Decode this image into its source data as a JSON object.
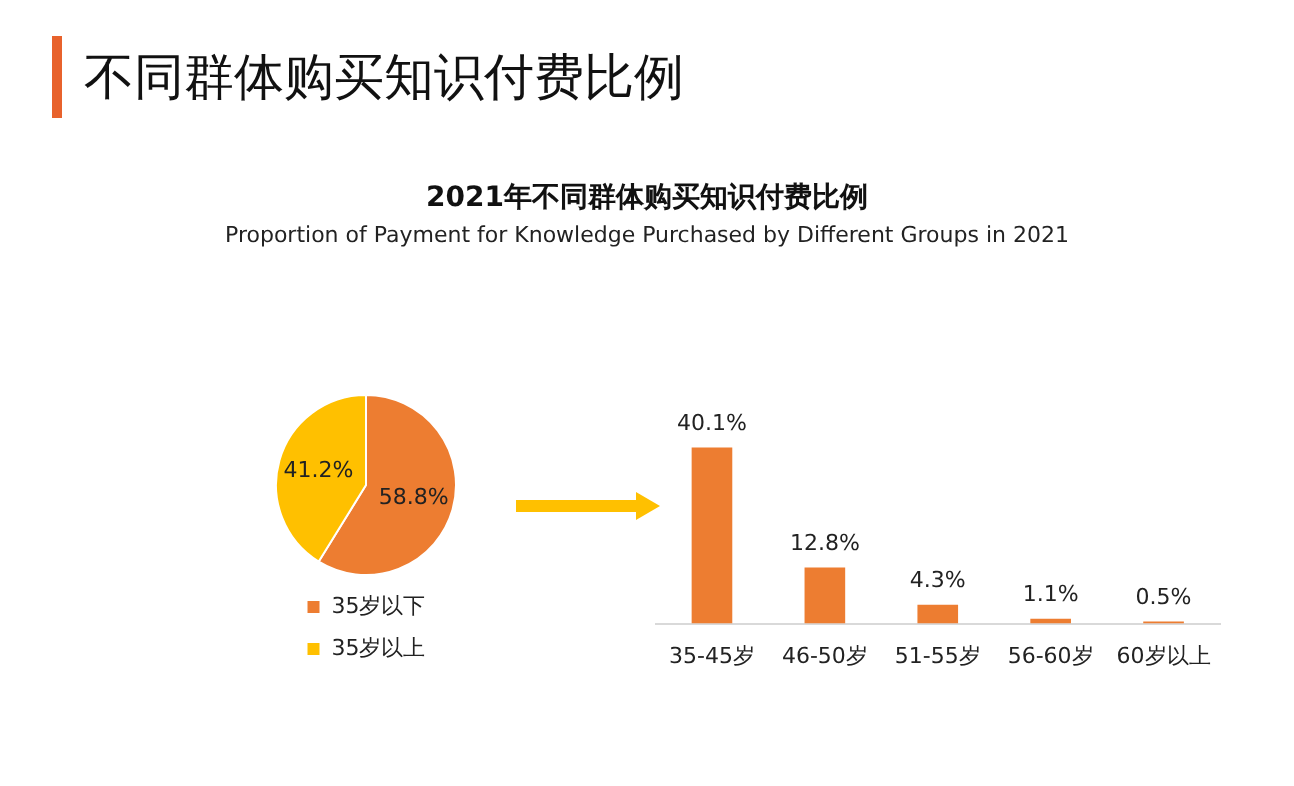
{
  "chart_data": [
    {
      "type": "pie",
      "title": "2021年不同群体购买知识付费比例",
      "subtitle": "Proportion of Payment for Knowledge Purchased by Different Groups in 2021",
      "annotations": [
        "不同群体购买知识付费比例"
      ],
      "categories": [
        "35岁以下",
        "35岁以上"
      ],
      "values": [
        58.8,
        41.2
      ],
      "colors": [
        "#ed7d31",
        "#ffc000"
      ],
      "value_labels": [
        "58.8%",
        "41.2%"
      ],
      "legend": "bottom"
    },
    {
      "type": "bar",
      "categories": [
        "35-45岁",
        "46-50岁",
        "51-55岁",
        "56-60岁",
        "60岁以上"
      ],
      "values": [
        40.1,
        12.8,
        4.3,
        1.1,
        0.5
      ],
      "color": "#ed7d31",
      "value_labels": [
        "40.1%",
        "12.8%",
        "4.3%",
        "1.1%",
        "0.5%"
      ],
      "tick_labels": "x",
      "grid": false
    }
  ]
}
